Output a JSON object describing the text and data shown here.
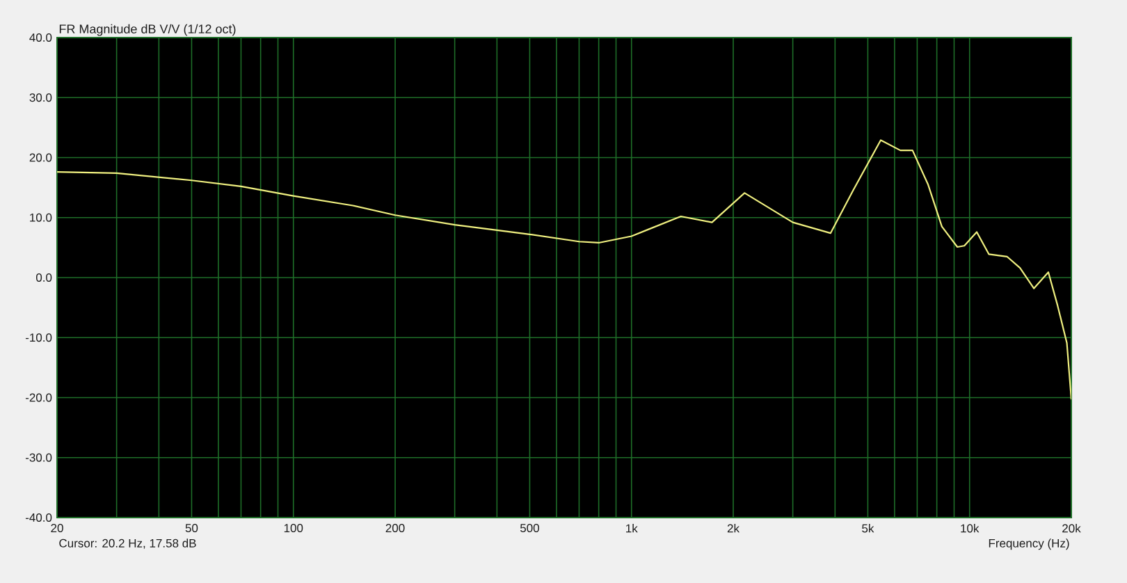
{
  "chart_data": {
    "type": "line",
    "title": "FR Magnitude dB V/V (1/12 oct)",
    "xlabel": "Frequency (Hz)",
    "annotations": [
      "Cursor: 20.2 Hz, 17.58 dB"
    ],
    "log": "x",
    "grid": true,
    "marker": "none",
    "line_style": "solid",
    "xlim": [
      20,
      20000
    ],
    "ylim": [
      -40,
      40
    ],
    "xticks": [
      {
        "value": 20,
        "label": "20"
      },
      {
        "value": 30,
        "label": null
      },
      {
        "value": 40,
        "label": null
      },
      {
        "value": 50,
        "label": "50"
      },
      {
        "value": 60,
        "label": null
      },
      {
        "value": 70,
        "label": null
      },
      {
        "value": 80,
        "label": null
      },
      {
        "value": 90,
        "label": null
      },
      {
        "value": 100,
        "label": "100"
      },
      {
        "value": 200,
        "label": "200"
      },
      {
        "value": 300,
        "label": null
      },
      {
        "value": 400,
        "label": null
      },
      {
        "value": 500,
        "label": "500"
      },
      {
        "value": 600,
        "label": null
      },
      {
        "value": 700,
        "label": null
      },
      {
        "value": 800,
        "label": null
      },
      {
        "value": 900,
        "label": null
      },
      {
        "value": 1000,
        "label": "1k"
      },
      {
        "value": 2000,
        "label": "2k"
      },
      {
        "value": 3000,
        "label": null
      },
      {
        "value": 4000,
        "label": null
      },
      {
        "value": 5000,
        "label": "5k"
      },
      {
        "value": 6000,
        "label": null
      },
      {
        "value": 7000,
        "label": null
      },
      {
        "value": 8000,
        "label": null
      },
      {
        "value": 9000,
        "label": null
      },
      {
        "value": 10000,
        "label": "10k"
      },
      {
        "value": 20000,
        "label": "20k"
      }
    ],
    "yticks": [
      {
        "value": -40,
        "label": "-40.0"
      },
      {
        "value": -30,
        "label": "-30.0"
      },
      {
        "value": -20,
        "label": "-20.0"
      },
      {
        "value": -10,
        "label": "-10.0"
      },
      {
        "value": 0,
        "label": "0.0"
      },
      {
        "value": 10,
        "label": "10.0"
      },
      {
        "value": 20,
        "label": "20.0"
      },
      {
        "value": 30,
        "label": "30.0"
      },
      {
        "value": 40,
        "label": "40.0"
      }
    ],
    "series": [
      {
        "color": "#f0f080",
        "x": [
          20,
          30,
          50,
          70,
          100,
          150,
          200,
          300,
          400,
          500,
          700,
          800,
          1000,
          1130,
          1400,
          1730,
          2160,
          3000,
          3880,
          4520,
          5460,
          6240,
          6780,
          7540,
          8280,
          9200,
          9650,
          10500,
          11400,
          12900,
          14100,
          15500,
          17100,
          18200,
          19400,
          20000
        ],
        "values": [
          17.6,
          17.4,
          16.2,
          15.2,
          13.6,
          12.0,
          10.4,
          8.8,
          7.9,
          7.2,
          6.0,
          5.8,
          6.9,
          8.1,
          10.2,
          9.2,
          14.1,
          9.2,
          7.4,
          14.5,
          22.9,
          21.2,
          21.2,
          15.5,
          8.5,
          5.1,
          5.3,
          7.6,
          3.9,
          3.5,
          1.6,
          -1.8,
          0.9,
          -4.6,
          -10.9,
          -20.3
        ]
      }
    ]
  }
}
